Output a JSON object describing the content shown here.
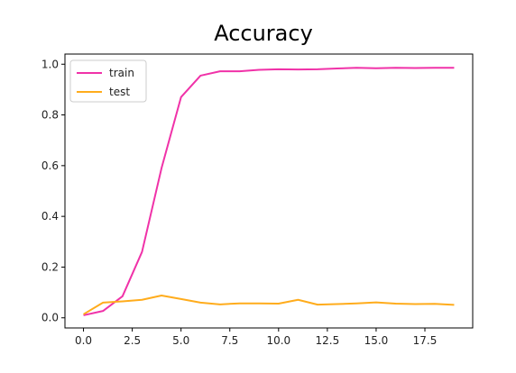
{
  "chart_data": {
    "type": "line",
    "title": "Accuracy",
    "xlabel": "",
    "ylabel": "",
    "xlim": [
      -0.95,
      19.95
    ],
    "ylim": [
      -0.04,
      1.04
    ],
    "xticks": [
      0.0,
      2.5,
      5.0,
      7.5,
      10.0,
      12.5,
      15.0,
      17.5
    ],
    "xtick_labels": [
      "0.0",
      "2.5",
      "5.0",
      "7.5",
      "10.0",
      "12.5",
      "15.0",
      "17.5"
    ],
    "yticks": [
      0.0,
      0.2,
      0.4,
      0.6,
      0.8,
      1.0
    ],
    "ytick_labels": [
      "0.0",
      "0.2",
      "0.4",
      "0.6",
      "0.8",
      "1.0"
    ],
    "grid": false,
    "legend_position": "upper-left",
    "x": [
      0,
      1,
      2,
      3,
      4,
      5,
      6,
      7,
      8,
      9,
      10,
      11,
      12,
      13,
      14,
      15,
      16,
      17,
      18,
      19
    ],
    "series": [
      {
        "name": "train",
        "color": "#f032a8",
        "values": [
          0.01,
          0.027,
          0.085,
          0.26,
          0.59,
          0.87,
          0.955,
          0.972,
          0.972,
          0.978,
          0.98,
          0.979,
          0.98,
          0.983,
          0.986,
          0.984,
          0.986,
          0.985,
          0.986,
          0.986
        ]
      },
      {
        "name": "test",
        "color": "#ffac1c",
        "values": [
          0.014,
          0.06,
          0.065,
          0.071,
          0.088,
          0.074,
          0.06,
          0.053,
          0.057,
          0.057,
          0.056,
          0.071,
          0.052,
          0.054,
          0.057,
          0.061,
          0.056,
          0.054,
          0.055,
          0.051
        ]
      }
    ]
  }
}
